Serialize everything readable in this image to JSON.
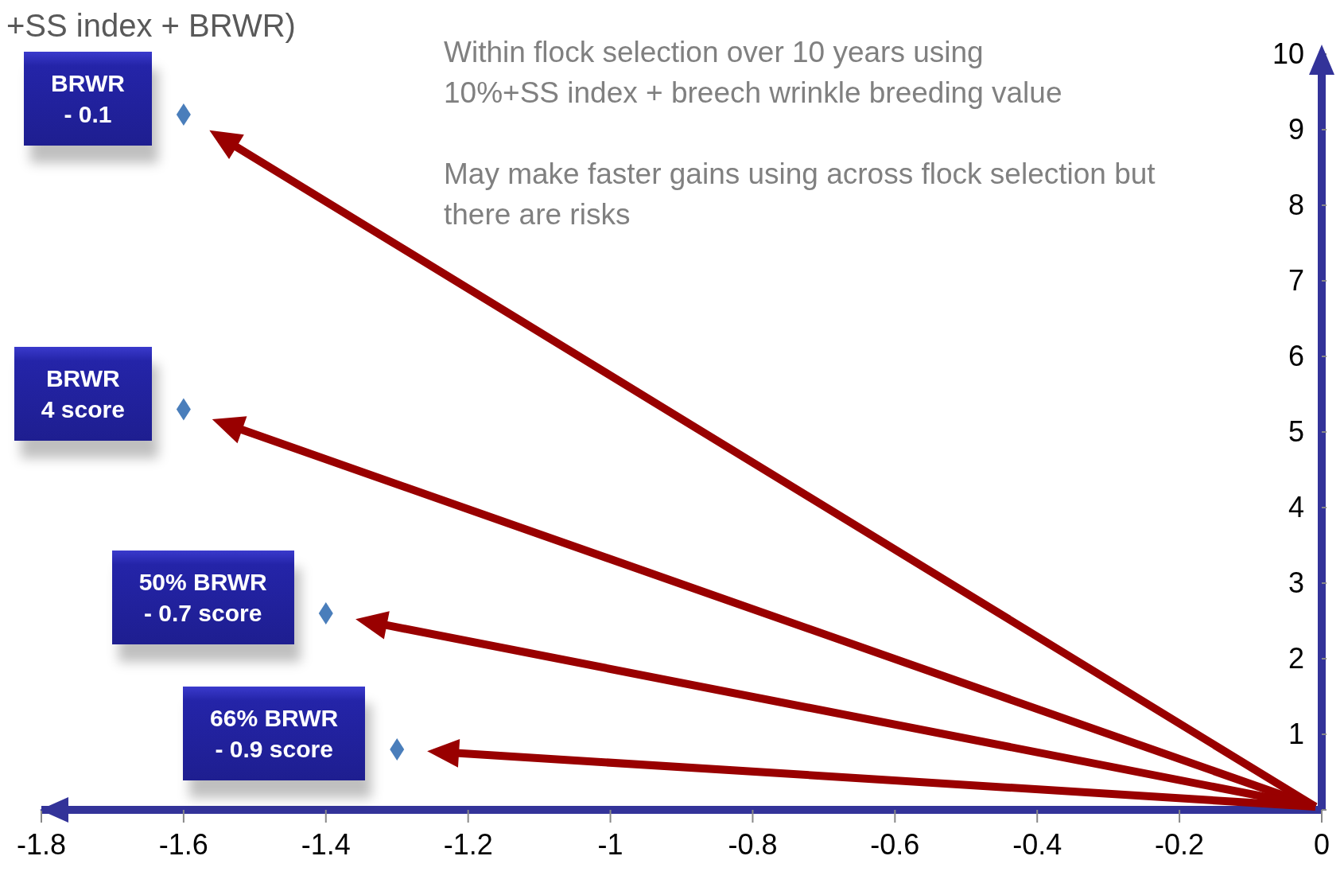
{
  "chart_data": {
    "type": "scatter",
    "title": "+SS index + BRWR)",
    "x": [
      -1.6,
      -1.6,
      -1.4,
      -1.3
    ],
    "series": [
      {
        "color": "#4a7ebb",
        "values": [
          9.2,
          5.3,
          2.6,
          0.8
        ]
      }
    ],
    "marker": "diamond",
    "xlim": [
      -1.8,
      0
    ],
    "xticks": [
      -1.8,
      -1.6,
      -1.4,
      -1.2,
      -1,
      -0.8,
      -0.6,
      -0.4,
      -0.2,
      0
    ],
    "ylim": [
      0,
      10
    ],
    "yticks": [
      {
        "value": 0,
        "label": null
      },
      1,
      2,
      3,
      4,
      5,
      6,
      7,
      8,
      9,
      10
    ],
    "grid": false,
    "legend": false,
    "annotations": [
      "Within flock selection over 10 years using\n10%+SS index + breech wrinkle breeding value",
      "May make faster gains using across flock selection but\nthere are risks",
      {
        "text": "BRWR\n- 0.1",
        "x": -1.6,
        "y": 9.2
      },
      {
        "text": "BRWR\n4 score",
        "x": -1.6,
        "y": 5.3
      },
      {
        "text": "50% BRWR\n- 0.7 score",
        "x": -1.4,
        "y": 2.6
      },
      {
        "text": "66% BRWR\n- 0.9 score",
        "x": -1.3,
        "y": 0.8
      }
    ]
  }
}
